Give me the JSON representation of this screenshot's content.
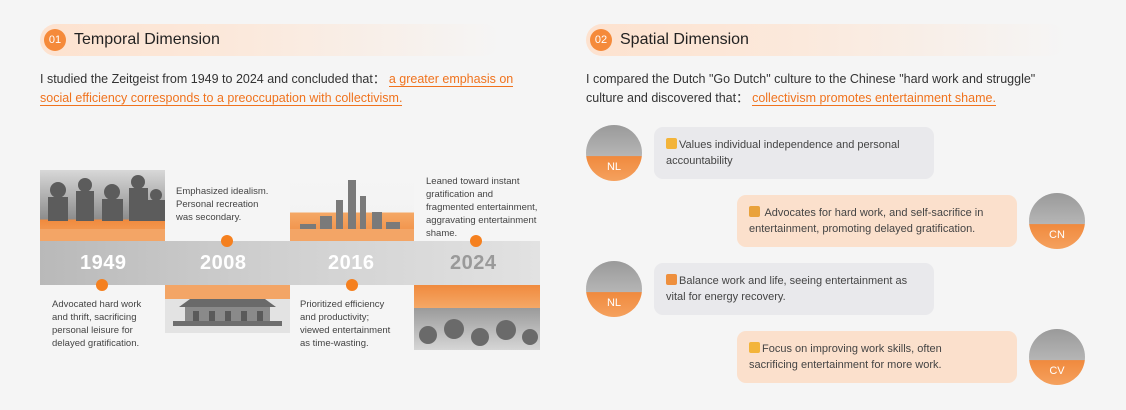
{
  "temporal": {
    "number": "01",
    "title": "Temporal Dimension",
    "intro": "I studied the Zeitgeist from 1949 to 2024 and concluded that：",
    "conclusion_line1": "a greater emphasis on",
    "conclusion_line2": "social efficiency corresponds to a preoccupation with collectivism.",
    "timeline": [
      {
        "year": "1949",
        "note": [
          "Advocated hard work",
          "and thrift, sacrificing",
          "personal leisure for",
          "delayed gratification."
        ]
      },
      {
        "year": "2008",
        "note": [
          "Emphasized idealism.",
          "Personal recreation",
          "was secondary."
        ]
      },
      {
        "year": "2016",
        "note": [
          "Prioritized efficiency",
          "and productivity;",
          "viewed entertainment",
          "as time-wasting."
        ]
      },
      {
        "year": "2024",
        "note": [
          "Leaned toward instant",
          "gratification and",
          "fragmented entertainment,",
          "aggravating entertainment",
          "shame."
        ]
      }
    ]
  },
  "spatial": {
    "number": "02",
    "title": "Spatial Dimension",
    "intro_line1": "I compared the Dutch \"Go Dutch\" culture to the Chinese \"hard work and struggle\"",
    "intro_line2": "culture and discovered that：",
    "conclusion": "collectivism promotes entertainment shame.",
    "messages": [
      {
        "avatar": "NL",
        "side": "left",
        "icon": "raising-hand-icon",
        "lines": [
          "Values individual independence and personal",
          "accountability"
        ]
      },
      {
        "avatar": "CN",
        "side": "right",
        "icon": "family-icon",
        "lines": [
          " Advocates for hard work, and self-sacrifice in",
          "entertainment, promoting delayed gratification."
        ]
      },
      {
        "avatar": "NL",
        "side": "left",
        "icon": "party-popper-icon",
        "lines": [
          "Balance work and life, seeing entertainment as",
          "vital for energy recovery."
        ]
      },
      {
        "avatar": "CV",
        "side": "right",
        "icon": "flexed-biceps-icon",
        "lines": [
          "Focus on improving work skills, often",
          "sacrificing entertainment for more work."
        ]
      }
    ]
  },
  "colors": {
    "accent": "#f58a3a",
    "highlight": "#f0731e",
    "bubble_gray": "#e9e9ec",
    "bubble_peach": "#fbe0cc"
  }
}
